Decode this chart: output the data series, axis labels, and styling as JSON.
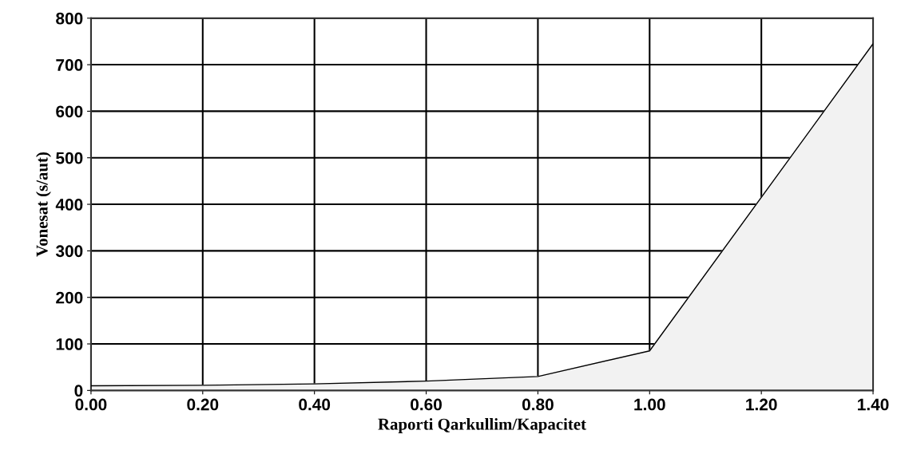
{
  "chart_data": {
    "type": "area",
    "xlabel": "Raporti Qarkullim/Kapacitet",
    "ylabel": "Vonesat (s/aut)",
    "x": [
      0.0,
      0.2,
      0.4,
      0.6,
      0.8,
      1.0,
      1.4
    ],
    "series": [
      {
        "color": "#f2f2f2",
        "values": [
          10,
          11,
          14,
          20,
          30,
          85,
          745
        ]
      }
    ],
    "xlim": [
      0,
      1.4
    ],
    "ylim": [
      0,
      800
    ],
    "xticks": [
      {
        "value": 0,
        "label": "0.00"
      },
      {
        "value": 0.2,
        "label": "0.20"
      },
      {
        "value": 0.4,
        "label": "0.40"
      },
      {
        "value": 0.6,
        "label": "0.60"
      },
      {
        "value": 0.8,
        "label": "0.80"
      },
      {
        "value": 1.0,
        "label": "1.00"
      },
      {
        "value": 1.2,
        "label": "1.20"
      },
      {
        "value": 1.4,
        "label": "1.40"
      }
    ],
    "yticks": [
      0,
      100,
      200,
      300,
      400,
      500,
      600,
      700,
      800
    ],
    "grid": true
  }
}
